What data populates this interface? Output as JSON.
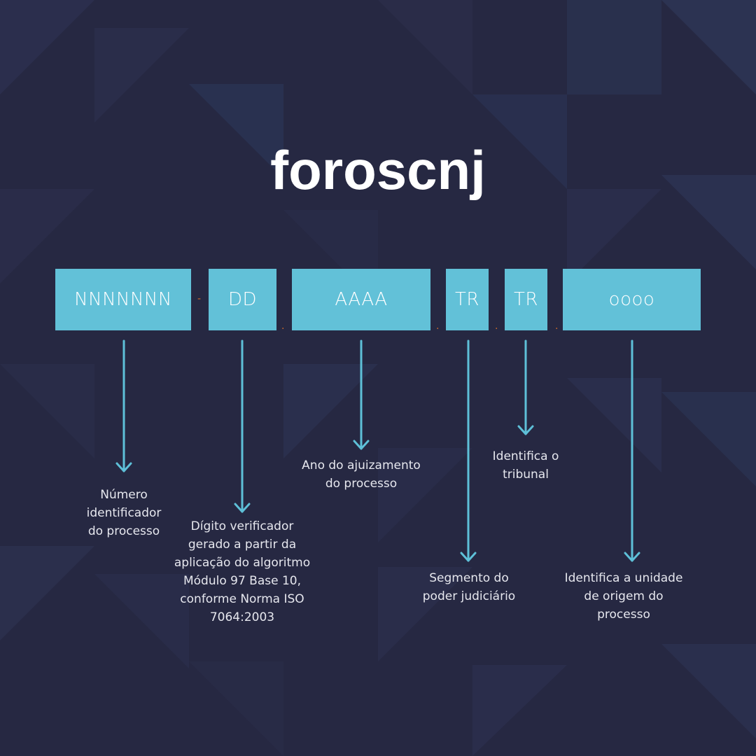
{
  "title": "foroscnj",
  "colors": {
    "background": "#262842",
    "segment_fill": "#62c1d8",
    "arrow": "#5ec0d8",
    "separator": "#d06a2a",
    "text": "#ffffff"
  },
  "segments": [
    {
      "code": "NNNNNNN",
      "description": "Número\nidentificador\ndo processo"
    },
    {
      "code": "DD",
      "description": "Dígito verificador\ngerado a partir da\naplicação do algoritmo\nMódulo 97 Base 10,\nconforme Norma ISO\n7064:2003"
    },
    {
      "code": "AAAA",
      "description": "Ano do ajuizamento\ndo processo"
    },
    {
      "code": "TR",
      "description": "Segmento do\npoder judiciário"
    },
    {
      "code": "TR",
      "description": "Identifica o\ntribunal"
    },
    {
      "code": "oooo",
      "description": "Identifica a unidade\nde origem do\nprocesso"
    }
  ],
  "separators": [
    "-",
    ".",
    ".",
    ".",
    "."
  ]
}
